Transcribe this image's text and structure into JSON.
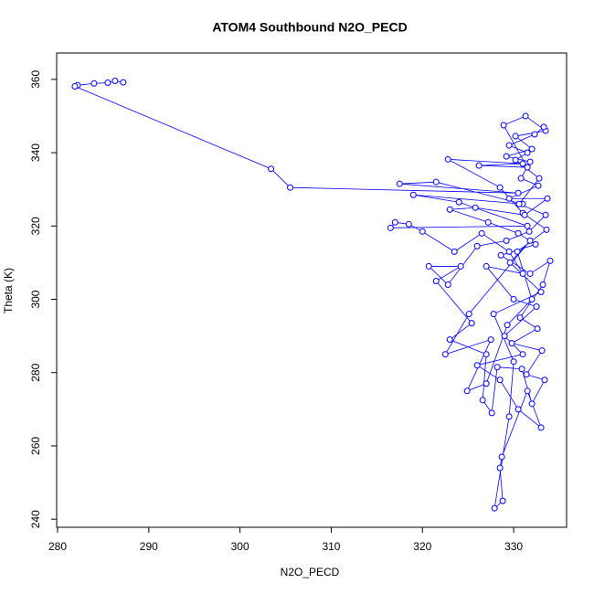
{
  "chart_data": {
    "type": "scatter_line",
    "title": "ATOM4 Southbound N2O_PECD",
    "xlabel": "N2O_PECD",
    "ylabel": "Theta (K)",
    "color": "#0000ff",
    "x": [
      287.2,
      286.3,
      285.5,
      284.0,
      282.2,
      281.9,
      303.4,
      305.5,
      330.5,
      317.5,
      321.5,
      331,
      319,
      324,
      331.5,
      316.5,
      317,
      318.5,
      320,
      323.5,
      326.5,
      329.5,
      331,
      327,
      330,
      332.5,
      329,
      331,
      326,
      328.5,
      330.5,
      333,
      331.5,
      328.7,
      328.5,
      328.8,
      327.9,
      329.5,
      330,
      327.8,
      333,
      329.6,
      331.8,
      325.1,
      322.5,
      327.5,
      324.9,
      327,
      329.3,
      332,
      330.4,
      333.6,
      331,
      328.5,
      322.8,
      331,
      326.2,
      331.5,
      328.9,
      331.3,
      333.5,
      330.2,
      332,
      329.2,
      331.8,
      330.8,
      332.7,
      329.5,
      333.7,
      331.2,
      325.8,
      323,
      327.2,
      330.5,
      332.4,
      328.6,
      331.8,
      334,
      333.2,
      330.7,
      332.6,
      329.8,
      333.1,
      331.4,
      333.4,
      332,
      330.9,
      328.2,
      327.6,
      326.6,
      327,
      323,
      325.4,
      321.5,
      324.2,
      320.7,
      322.8,
      326,
      329.2,
      331.7,
      333.5,
      330.6,
      332.8,
      330.2,
      331.5,
      329.5,
      332.3,
      333.3
    ],
    "values": [
      359.2,
      359.6,
      359.1,
      358.9,
      358.4,
      358.1,
      335.6,
      330.5,
      329,
      331.5,
      332,
      326,
      328.5,
      326.5,
      320,
      319.5,
      321,
      320.5,
      318.5,
      313,
      318,
      313,
      307,
      309,
      300,
      298,
      290,
      285,
      282,
      278,
      270,
      265,
      275,
      257,
      254,
      245,
      243,
      268,
      283,
      296,
      302,
      310,
      316,
      296,
      285,
      289,
      275,
      277,
      293,
      300,
      313,
      319,
      323.5,
      330.5,
      338.2,
      337,
      336.5,
      336,
      347.5,
      350,
      346,
      344.5,
      341,
      339,
      337.5,
      333,
      331,
      327.5,
      327.5,
      323,
      325,
      324.5,
      321,
      318,
      315,
      312,
      307,
      310.5,
      304,
      295,
      292,
      288,
      286,
      279.5,
      278,
      271.5,
      281,
      281.5,
      269,
      272.5,
      285,
      289,
      293.5,
      305,
      309,
      309,
      304,
      314.5,
      316,
      318.5,
      323,
      326,
      333,
      338,
      340,
      342,
      345,
      347
    ],
    "xlim": [
      279.9,
      335.8
    ],
    "ylim": [
      237.8,
      367.2
    ],
    "xticks": [
      280,
      290,
      300,
      310,
      320,
      330
    ],
    "yticks": [
      240,
      260,
      280,
      300,
      320,
      340,
      360
    ]
  }
}
